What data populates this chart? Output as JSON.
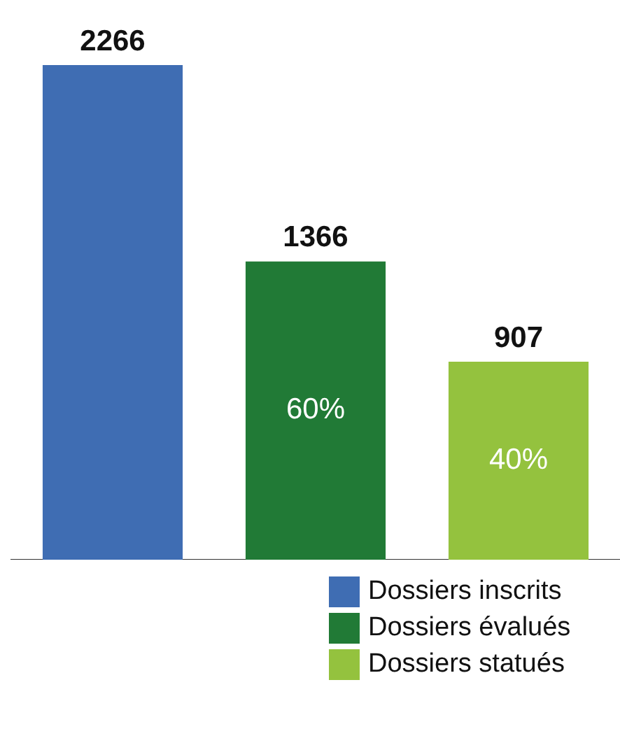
{
  "chart_data": {
    "type": "bar",
    "categories": [
      null,
      null,
      null
    ],
    "stacked": true,
    "data_labels": true,
    "legend": "bottom right",
    "tick_labels": false,
    "grid": false,
    "annotations": [
      "60%",
      "40%"
    ],
    "series": [
      {
        "name": "Dossiers inscrits",
        "color": "#3f6db3",
        "values": [
          2266,
          null,
          null
        ]
      },
      {
        "name": "Dossiers évalués",
        "color": "#217a36",
        "values": [
          null,
          1366,
          null
        ]
      },
      {
        "name": "Dossiers statués",
        "color": "#94c23e",
        "values": [
          null,
          null,
          907
        ]
      }
    ]
  }
}
